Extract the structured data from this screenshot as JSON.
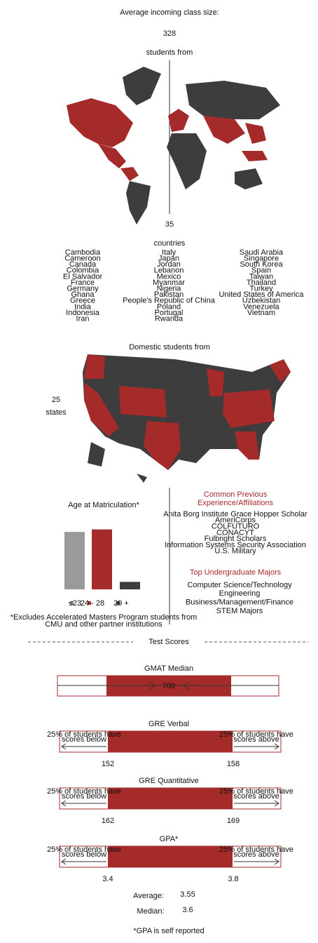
{
  "header": {
    "title": "Average incoming class size:",
    "class_size": 328,
    "students_from": "students from"
  },
  "world": {
    "count": 35,
    "unit": "countries",
    "columns": [
      [
        "Cambodia",
        "Cameroon",
        "Canada",
        "Colombia",
        "El Salvador",
        "France",
        "Germany",
        "Ghana",
        "Greece",
        "India",
        "Indonesia",
        "Iran"
      ],
      [
        "Italy",
        "Japan",
        "Jordan",
        "Lebanon",
        "Mexico",
        "Myanmar",
        "Nigeria",
        "Pakistan",
        "People's Republic of China",
        "Poland",
        "Portugal",
        "Rwanda"
      ],
      [
        "Saudi Arabia",
        "Singapore",
        "South Korea",
        "Spain",
        "Taiwan",
        "Thailand",
        "Turkey",
        "United States of America",
        "Uzbekistan",
        "Venezuela",
        "Vietnam"
      ]
    ]
  },
  "domestic": {
    "title": "Domestic students from",
    "count": 25,
    "unit": "states"
  },
  "chart_data": {
    "type": "bar",
    "title": "Age at Matriculation*",
    "categories": [
      "≤23",
      "24 - 28",
      "29 +"
    ],
    "values": [
      46,
      48,
      6
    ],
    "colors": [
      "#9a9a9a",
      "#a52a2a",
      "#3d3d3d"
    ],
    "footnote": "*Excludes Accelerated Masters Program students from CMU and other partner institutions"
  },
  "affiliations": {
    "title": "Common Previous Experience/Affiliations",
    "items": [
      "Anita Borg Institute Grace Hopper Scholar",
      "AmeriCorps",
      "COLFUTURO",
      "CONACYT",
      "Fulbright Scholars",
      "Information Systems Security Association",
      "U.S. Military"
    ]
  },
  "majors": {
    "title": "Top Undergraduate Majors",
    "items": [
      "Computer Science/Technology",
      "Engineering",
      "Business/Management/Finance",
      "STEM Majors"
    ]
  },
  "test_scores": {
    "title": "Test Scores",
    "note_below": "25% of students have scores below",
    "note_above": "25% of students have scores above",
    "gmat": {
      "title": "GMAT Median",
      "value": 700
    },
    "ranges": [
      {
        "title": "GRE Verbal",
        "low": 152,
        "high": 158
      },
      {
        "title": "GRE Quantitative",
        "low": 162,
        "high": 169
      },
      {
        "title": "GPA*",
        "low": 3.4,
        "high": 3.8
      }
    ],
    "average_label": "Average:",
    "average": 3.55,
    "median_label": "Median:",
    "median": 3.6,
    "footnote": "*GPA is self reported"
  }
}
